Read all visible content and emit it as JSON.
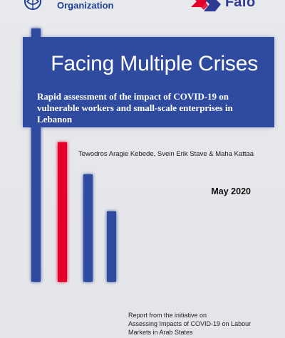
{
  "header": {
    "left_logo_text": "Organization",
    "right_logo_text": "Fafo"
  },
  "cover": {
    "title": "Facing Multiple Crises",
    "subtitle": "Rapid assessment of the impact of COVID-19 on vulnerable workers and small-scale enterprises in Lebanon",
    "authors": "Tewodros Aragie Kebede, Svein Erik Stave & Maha Kattaa",
    "date": "May 2020",
    "report_note_lines": [
      "Report from the initiative on",
      "Assessing Impacts of COVID-19 on Labour",
      "Markets in Arab States"
    ]
  },
  "colors": {
    "band_blue": "#2f4ba0",
    "bar_blue": "#2f4ba0",
    "bar_red": "#e4002b",
    "background": "#e6e7ea"
  },
  "icons": {
    "left_logo": "ilo-emblem-icon",
    "right_logo": "fafo-mark-icon"
  }
}
